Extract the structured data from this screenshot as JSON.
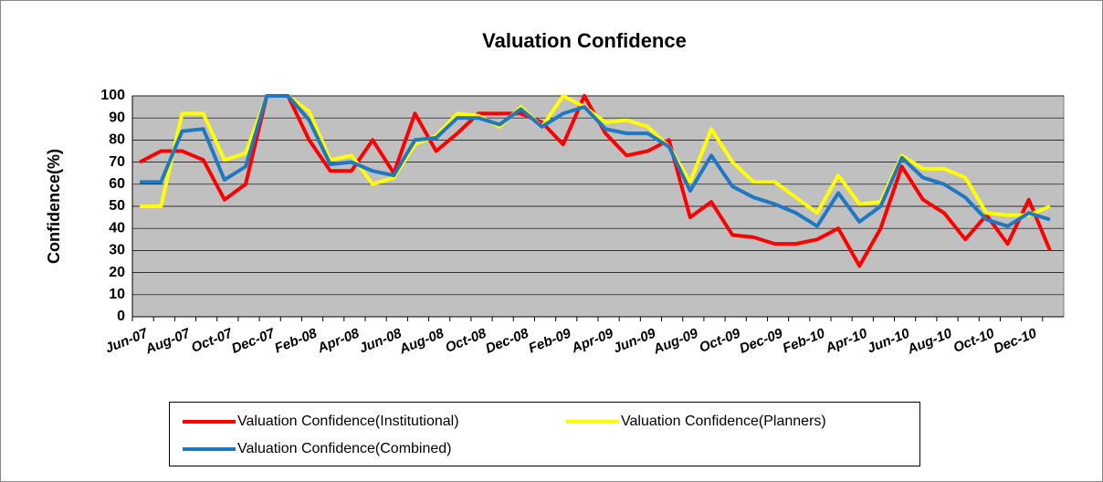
{
  "chart_data": {
    "type": "line",
    "title": "Valuation Confidence",
    "y_label": "Confidence(%)",
    "categories": [
      "Jun-07",
      null,
      "Aug-07",
      null,
      "Oct-07",
      null,
      "Dec-07",
      null,
      "Feb-08",
      null,
      "Apr-08",
      null,
      "Jun-08",
      null,
      "Aug-08",
      null,
      "Oct-08",
      null,
      "Dec-08",
      null,
      "Feb-09",
      null,
      "Apr-09",
      null,
      "Jun-09",
      null,
      "Aug-09",
      null,
      "Oct-09",
      null,
      "Dec-09",
      null,
      "Feb-10",
      null,
      "Apr-10",
      null,
      "Jun-10",
      null,
      "Aug-10",
      null,
      "Oct-10",
      null,
      "Dec-10",
      null
    ],
    "series": [
      {
        "name": "Valuation Confidence(Institutional)",
        "color": "#ff0000",
        "values": [
          70,
          75,
          75,
          71,
          53,
          60,
          100,
          100,
          80,
          66,
          66,
          80,
          65,
          92,
          75,
          83,
          92,
          92,
          92,
          88,
          78,
          100,
          83,
          73,
          75,
          80,
          45,
          52,
          37,
          36,
          33,
          33,
          35,
          40,
          23,
          40,
          68,
          53,
          47,
          35,
          46,
          33,
          53,
          30
        ]
      },
      {
        "name": "Valuation Confidence(Planners)",
        "color": "#ffff00",
        "values": [
          50,
          50,
          92,
          92,
          71,
          74,
          100,
          100,
          93,
          71,
          73,
          60,
          63,
          78,
          82,
          92,
          91,
          86,
          95,
          86,
          100,
          95,
          88,
          89,
          86,
          77,
          61,
          85,
          70,
          61,
          61,
          54,
          47,
          64,
          51,
          52,
          73,
          67,
          67,
          63,
          47,
          46,
          46,
          50
        ]
      },
      {
        "name": "Valuation Confidence(Combined)",
        "color": "#1f78c1",
        "values": [
          61,
          61,
          84,
          85,
          62,
          68,
          100,
          100,
          89,
          69,
          70,
          66,
          64,
          80,
          81,
          90,
          90,
          87,
          94,
          86,
          92,
          95,
          85,
          83,
          83,
          77,
          57,
          73,
          59,
          54,
          51,
          47,
          41,
          56,
          43,
          50,
          72,
          63,
          60,
          54,
          44,
          41,
          47,
          44
        ]
      }
    ],
    "ylim": [
      0,
      100
    ],
    "yticks": [
      0,
      10,
      20,
      30,
      40,
      50,
      60,
      70,
      80,
      90,
      100
    ],
    "grid": true,
    "plot_background": "#c0c0c0"
  }
}
